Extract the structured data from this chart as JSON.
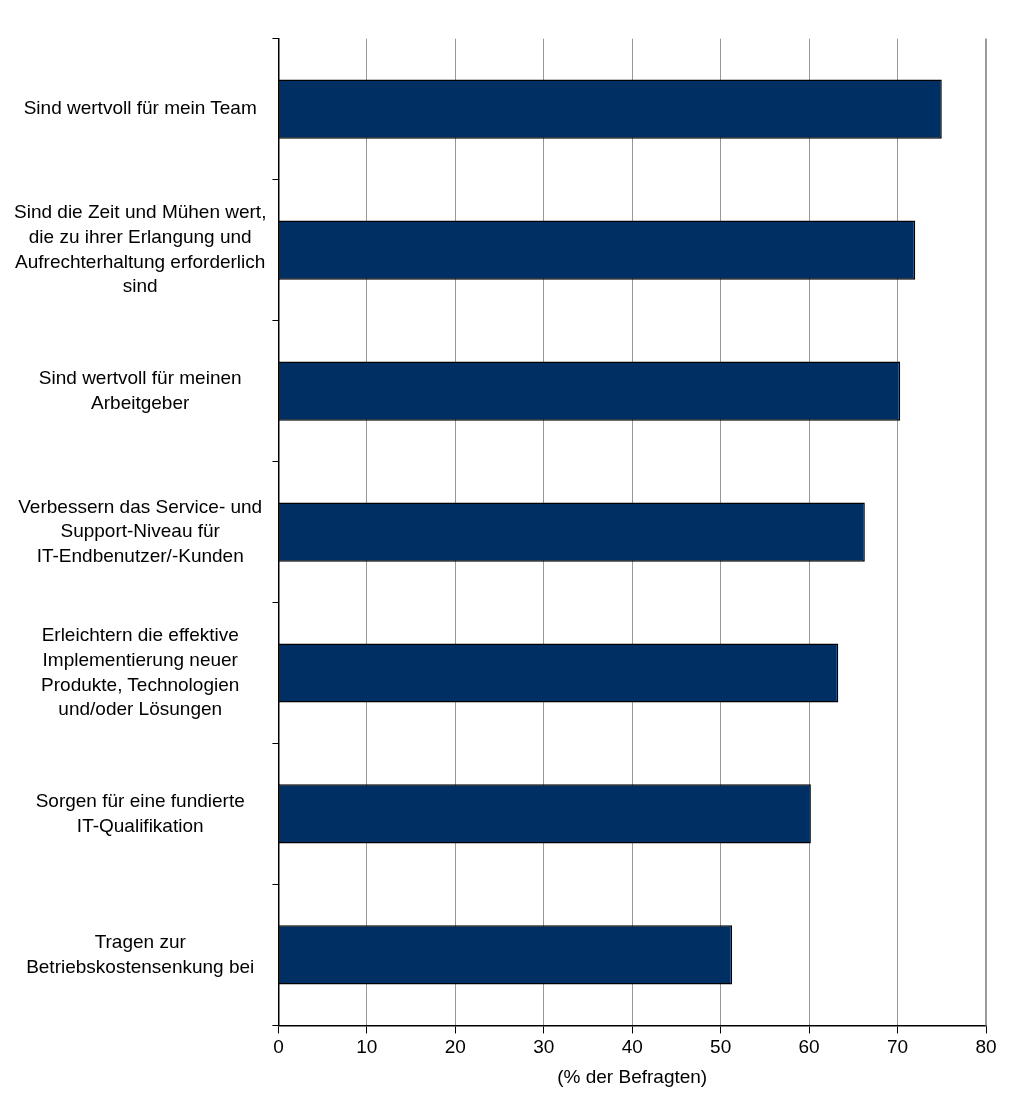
{
  "chart_data": {
    "type": "bar",
    "orientation": "horizontal",
    "xlabel": "(% der Befragten)",
    "categories": [
      "Sind wertvoll für mein Team",
      "Sind die Zeit und Mühen wert, die zu ihrer Erlangung und Aufrechterhaltung erforderlich sind",
      "Sind wertvoll für meinen Arbeitgeber",
      "Verbessern das Service- und Support-Niveau für IT-Endbenutzer/-Kunden",
      "Erleichtern die effektive Implementierung neuer Produkte, Technologien und/oder Lösungen",
      "Sorgen für eine fundierte IT-Qualifikation",
      "Tragen zur Betriebskostensenkung bei"
    ],
    "values": [
      75,
      72,
      70.3,
      66.3,
      63.3,
      60.2,
      51.3
    ],
    "color": "#003063",
    "xlim": [
      0,
      80
    ],
    "xticks": [
      0,
      10,
      20,
      30,
      40,
      50,
      60,
      70,
      80
    ],
    "grid": "x"
  }
}
